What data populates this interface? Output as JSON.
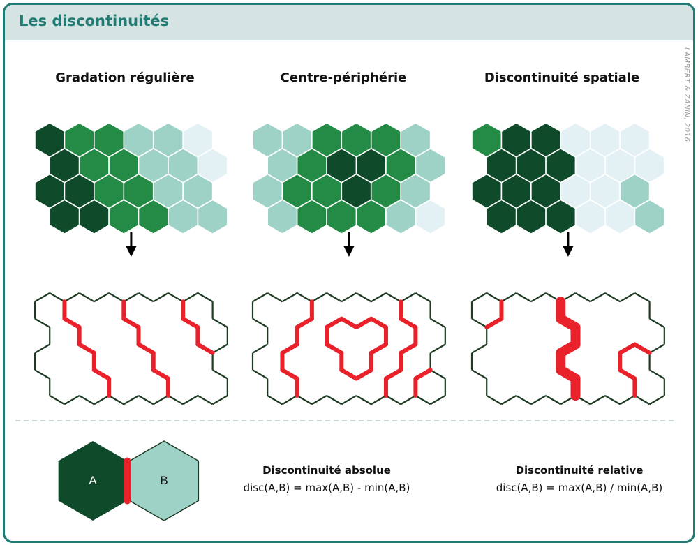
{
  "header": {
    "title": "Les discontinuités"
  },
  "credit": "LAMBERT & ZANIN, 2016",
  "colors": {
    "c1": "#e4f1f4",
    "c2": "#9fd2c6",
    "c3": "#238b45",
    "c4": "#0f4a2a",
    "boundary": "#e8212a",
    "outline": "#1d3a22",
    "divider": "#c8d6d8"
  },
  "panels": [
    {
      "title": "Gradation régulière",
      "grid": [
        [
          4,
          3,
          3,
          2,
          2,
          1
        ],
        [
          4,
          3,
          3,
          2,
          2,
          1
        ],
        [
          4,
          4,
          3,
          3,
          2,
          2
        ],
        [
          4,
          4,
          3,
          3,
          2,
          2
        ]
      ]
    },
    {
      "title": "Centre-périphérie",
      "grid": [
        [
          2,
          2,
          3,
          3,
          3,
          2
        ],
        [
          2,
          3,
          4,
          4,
          3,
          2
        ],
        [
          2,
          3,
          3,
          4,
          3,
          2
        ],
        [
          2,
          3,
          3,
          3,
          2,
          1
        ]
      ]
    },
    {
      "title": "Discontinuité spatiale",
      "grid": [
        [
          3,
          4,
          4,
          1,
          1,
          1
        ],
        [
          4,
          4,
          4,
          1,
          1,
          1
        ],
        [
          4,
          4,
          4,
          1,
          1,
          2
        ],
        [
          4,
          4,
          4,
          1,
          1,
          2
        ]
      ]
    }
  ],
  "legend": {
    "hex_a": "A",
    "hex_b": "B",
    "absolute": {
      "title": "Discontinuité absolue",
      "formula": "disc(A,B) = max(A,B) - min(A,B)"
    },
    "relative": {
      "title": "Discontinuité relative",
      "formula": "disc(A,B) = max(A,B) / min(A,B)"
    }
  }
}
